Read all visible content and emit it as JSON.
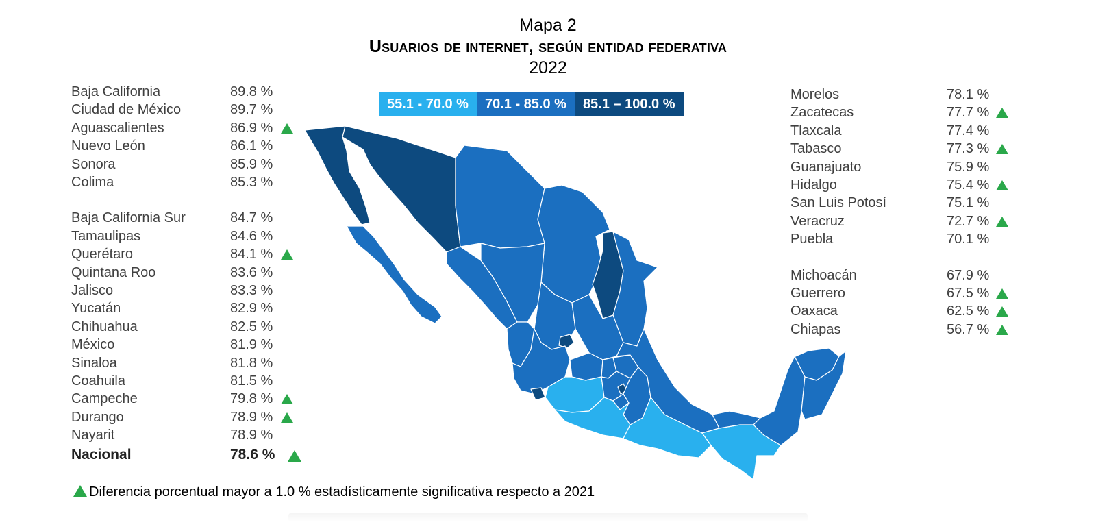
{
  "title": {
    "line1": "Mapa 2",
    "line2": "Usuarios de internet, según entidad federativa",
    "line3": "2022"
  },
  "colors": {
    "range_low": "#29b0ee",
    "range_mid": "#1b6fc0",
    "range_high": "#0d4a7f",
    "significance_marker": "#2aa84a"
  },
  "legend": [
    {
      "label": "55.1 - 70.0 %",
      "color": "#29b0ee"
    },
    {
      "label": "70.1 - 85.0 %",
      "color": "#1b6fc0"
    },
    {
      "label": "85.1 – 100.0 %",
      "color": "#0d4a7f"
    }
  ],
  "states_left": [
    {
      "name": "Baja California",
      "value": "89.8 %",
      "significant": false
    },
    {
      "name": "Ciudad de México",
      "value": "89.7 %",
      "significant": false
    },
    {
      "name": "Aguascalientes",
      "value": "86.9 %",
      "significant": true
    },
    {
      "name": "Nuevo León",
      "value": "86.1 %",
      "significant": false
    },
    {
      "name": "Sonora",
      "value": "85.9 %",
      "significant": false
    },
    {
      "name": "Colima",
      "value": "85.3 %",
      "significant": false
    },
    {
      "name": "Baja California Sur",
      "value": "84.7 %",
      "significant": false
    },
    {
      "name": "Tamaulipas",
      "value": "84.6 %",
      "significant": false
    },
    {
      "name": "Querétaro",
      "value": "84.1 %",
      "significant": true
    },
    {
      "name": "Quintana Roo",
      "value": "83.6 %",
      "significant": false
    },
    {
      "name": "Jalisco",
      "value": "83.3 %",
      "significant": false
    },
    {
      "name": "Yucatán",
      "value": "82.9 %",
      "significant": false
    },
    {
      "name": "Chihuahua",
      "value": "82.5 %",
      "significant": false
    },
    {
      "name": "México",
      "value": "81.9 %",
      "significant": false
    },
    {
      "name": "Sinaloa",
      "value": "81.8 %",
      "significant": false
    },
    {
      "name": "Coahuila",
      "value": "81.5 %",
      "significant": false
    },
    {
      "name": "Campeche",
      "value": "79.8 %",
      "significant": true
    },
    {
      "name": "Durango",
      "value": "78.9 %",
      "significant": true
    },
    {
      "name": "Nayarit",
      "value": "78.9 %",
      "significant": false
    }
  ],
  "national": {
    "name": "Nacional",
    "value": "78.6 %",
    "significant": true
  },
  "states_right": [
    {
      "name": "Morelos",
      "value": "78.1 %",
      "significant": false
    },
    {
      "name": "Zacatecas",
      "value": "77.7 %",
      "significant": true
    },
    {
      "name": "Tlaxcala",
      "value": "77.4 %",
      "significant": false
    },
    {
      "name": "Tabasco",
      "value": "77.3 %",
      "significant": true
    },
    {
      "name": "Guanajuato",
      "value": "75.9 %",
      "significant": false
    },
    {
      "name": "Hidalgo",
      "value": "75.4 %",
      "significant": true
    },
    {
      "name": "San Luis Potosí",
      "value": "75.1 %",
      "significant": false
    },
    {
      "name": "Veracruz",
      "value": "72.7 %",
      "significant": true
    },
    {
      "name": "Puebla",
      "value": "70.1 %",
      "significant": false
    },
    {
      "name": "Michoacán",
      "value": "67.9 %",
      "significant": false
    },
    {
      "name": "Guerrero",
      "value": "67.5 %",
      "significant": true
    },
    {
      "name": "Oaxaca",
      "value": "62.5 %",
      "significant": true
    },
    {
      "name": "Chiapas",
      "value": "56.7 %",
      "significant": true
    }
  ],
  "footnote": "Diferencia porcentual mayor a 1.0 % estadísticamente significativa respecto a 2021"
}
